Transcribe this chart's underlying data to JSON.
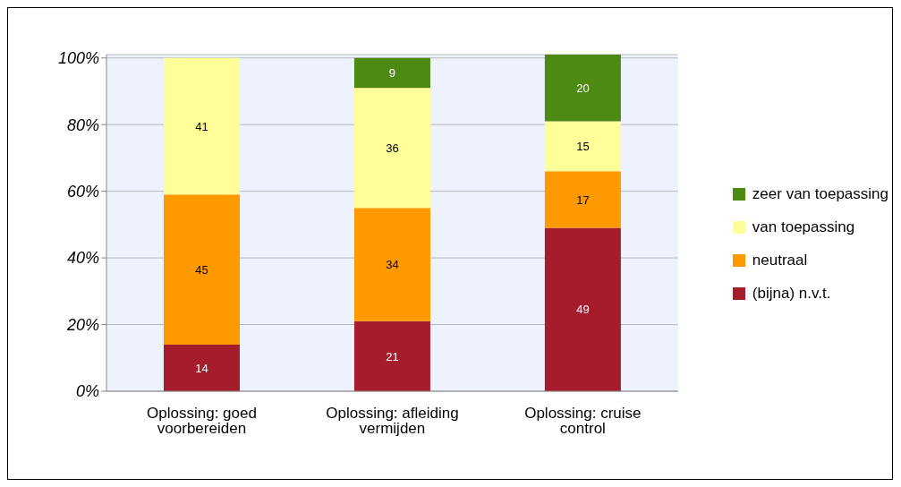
{
  "chart_data": {
    "type": "bar",
    "stacked": true,
    "categories": [
      "Oplossing: goed voorbereiden",
      "Oplossing: afleiding vermijden",
      "Oplossing: cruise control"
    ],
    "series": [
      {
        "name": "(bijna) n.v.t.",
        "color": "#a51d2d",
        "values": [
          14,
          21,
          49
        ]
      },
      {
        "name": "neutraal",
        "color": "#ff9900",
        "values": [
          45,
          34,
          17
        ]
      },
      {
        "name": "van toepassing",
        "color": "#ffff99",
        "values": [
          41,
          36,
          15
        ]
      },
      {
        "name": "zeer van toepassing",
        "color": "#4d8a14",
        "values": [
          null,
          9,
          20
        ]
      }
    ],
    "ylim": [
      0,
      101
    ],
    "yticks": [
      {
        "value": 0,
        "label": "0%"
      },
      {
        "value": 20,
        "label": "20%"
      },
      {
        "value": 40,
        "label": "40%"
      },
      {
        "value": 60,
        "label": "60%"
      },
      {
        "value": 80,
        "label": "80%"
      },
      {
        "value": 100,
        "label": "100%"
      }
    ],
    "grid": "y",
    "legend": "right",
    "data_labels": true
  }
}
